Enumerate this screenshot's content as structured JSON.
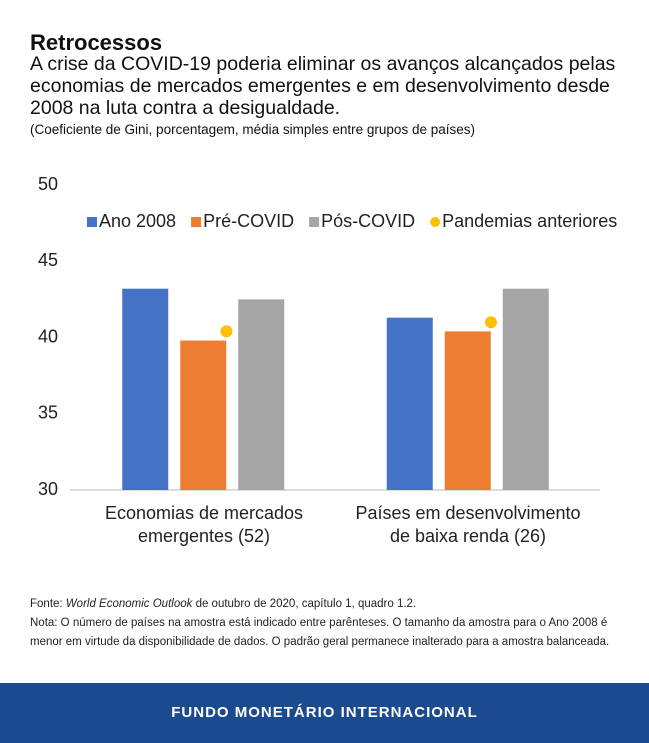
{
  "chart_data": {
    "type": "bar",
    "title": "Retrocessos",
    "subtitle": "A crise da COVID-19 poderia eliminar os avanços alcançados pelas economias de mercados emergentes e em desenvolvimento desde 2008 na luta contra a desigualdade.",
    "units_note": "(Coeficiente de Gini, porcentagem, média simples entre grupos de países)",
    "categories": [
      "Economias de mercados emergentes (52)",
      "Países em desenvolvimento de baixa renda (26)"
    ],
    "series": [
      {
        "name": "Ano 2008",
        "color": "#4472c4",
        "values": [
          43.2,
          41.3
        ]
      },
      {
        "name": "Pré-COVID",
        "color": "#ed7d31",
        "values": [
          39.8,
          40.4
        ]
      },
      {
        "name": "Pós-COVID",
        "color": "#a5a5a5",
        "values": [
          42.5,
          43.2
        ]
      },
      {
        "name": "Pandemias anteriores",
        "color": "#ffc000",
        "type": "scatter",
        "values": [
          40.4,
          41.0
        ]
      }
    ],
    "ylim": [
      30,
      50
    ],
    "yticks": [
      30,
      35,
      40,
      45,
      50
    ],
    "grid": false,
    "legend": "top",
    "source": [
      "Fonte:",
      "World Economic Outlook",
      "de outubro de 2020, capítulo 1, quadro 1.2."
    ],
    "note": "Nota: O número de países na amostra está indicado entre parênteses. O tamanho da amostra para o Ano 2008 é menor em virtude da disponibilidade de dados. O padrão geral permanece inalterado para a amostra balanceada.",
    "footer": "FUNDO MONETÁRIO INTERNACIONAL"
  }
}
